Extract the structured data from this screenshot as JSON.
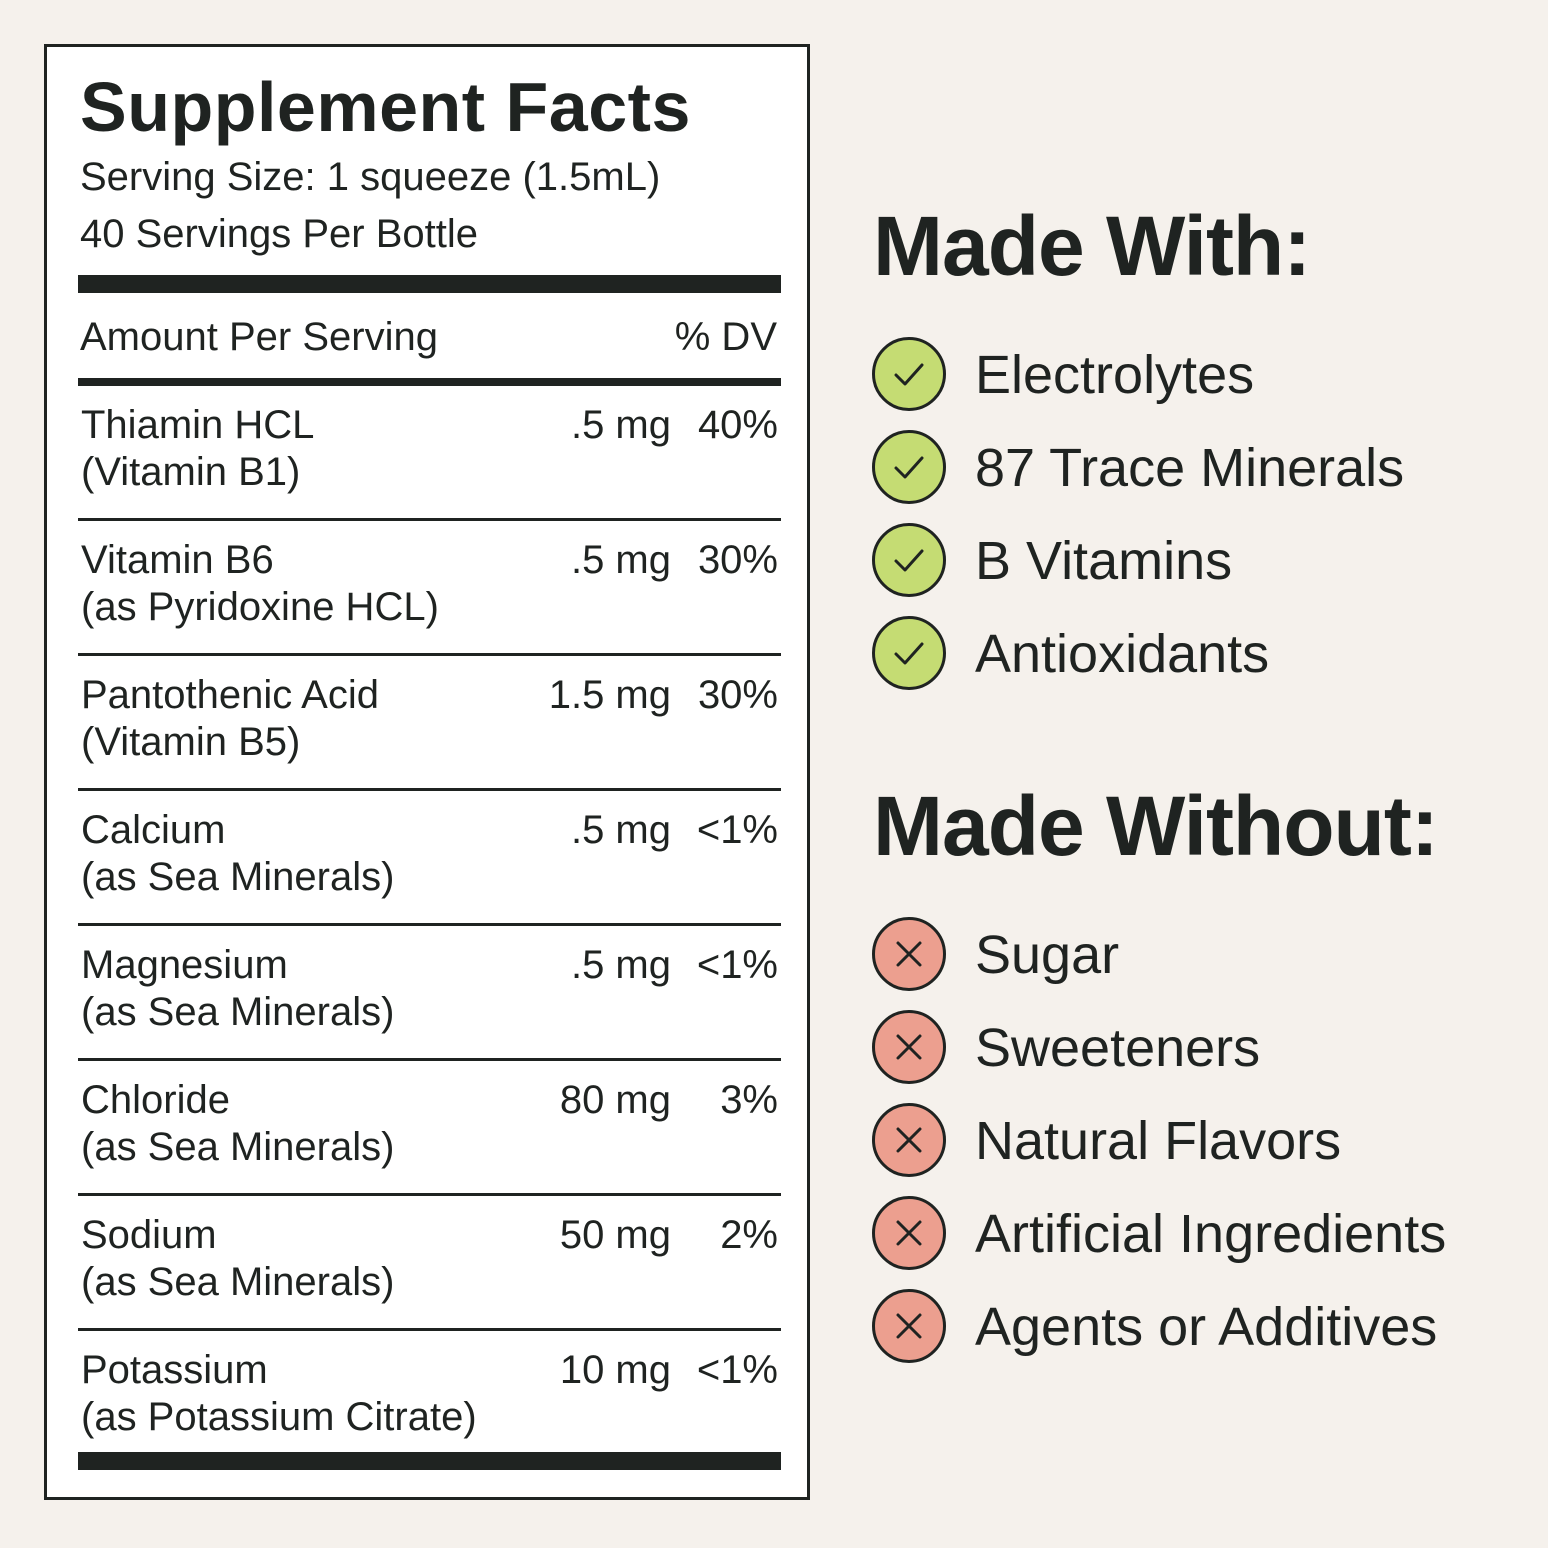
{
  "facts": {
    "title": "Supplement Facts",
    "serving_size": "Serving Size: 1 squeeze (1.5mL)",
    "servings_per": "40 Servings Per Bottle",
    "amount_header": "Amount Per Serving",
    "dv_header": "% DV",
    "rows": [
      {
        "name": "Thiamin HCL",
        "detail": "(Vitamin B1)",
        "amount": ".5 mg",
        "dv": "40%"
      },
      {
        "name": "Vitamin B6",
        "detail": "(as Pyridoxine HCL)",
        "amount": ".5 mg",
        "dv": "30%"
      },
      {
        "name": "Pantothenic Acid",
        "detail": "(Vitamin B5)",
        "amount": "1.5 mg",
        "dv": "30%"
      },
      {
        "name": "Calcium",
        "detail": "(as Sea Minerals)",
        "amount": ".5 mg",
        "dv": "<1%"
      },
      {
        "name": "Magnesium",
        "detail": "(as Sea Minerals)",
        "amount": ".5 mg",
        "dv": "<1%"
      },
      {
        "name": "Chloride",
        "detail": "(as Sea Minerals)",
        "amount": "80 mg",
        "dv": "3%"
      },
      {
        "name": "Sodium",
        "detail": "(as Sea Minerals)",
        "amount": "50 mg",
        "dv": "2%"
      },
      {
        "name": "Potassium",
        "detail": "(as Potassium Citrate)",
        "amount": "10 mg",
        "dv": "<1%"
      }
    ]
  },
  "made_with": {
    "heading": "Made With:",
    "icon": "check-icon",
    "color": "#c5dc73",
    "items": [
      "Electrolytes",
      "87 Trace Minerals",
      "B Vitamins",
      "Antioxidants"
    ]
  },
  "made_without": {
    "heading": "Made Without:",
    "icon": "x-icon",
    "color": "#ec9f8f",
    "items": [
      "Sugar",
      "Sweeteners",
      "Natural Flavors",
      "Artificial Ingredients",
      "Agents or Additives"
    ]
  }
}
